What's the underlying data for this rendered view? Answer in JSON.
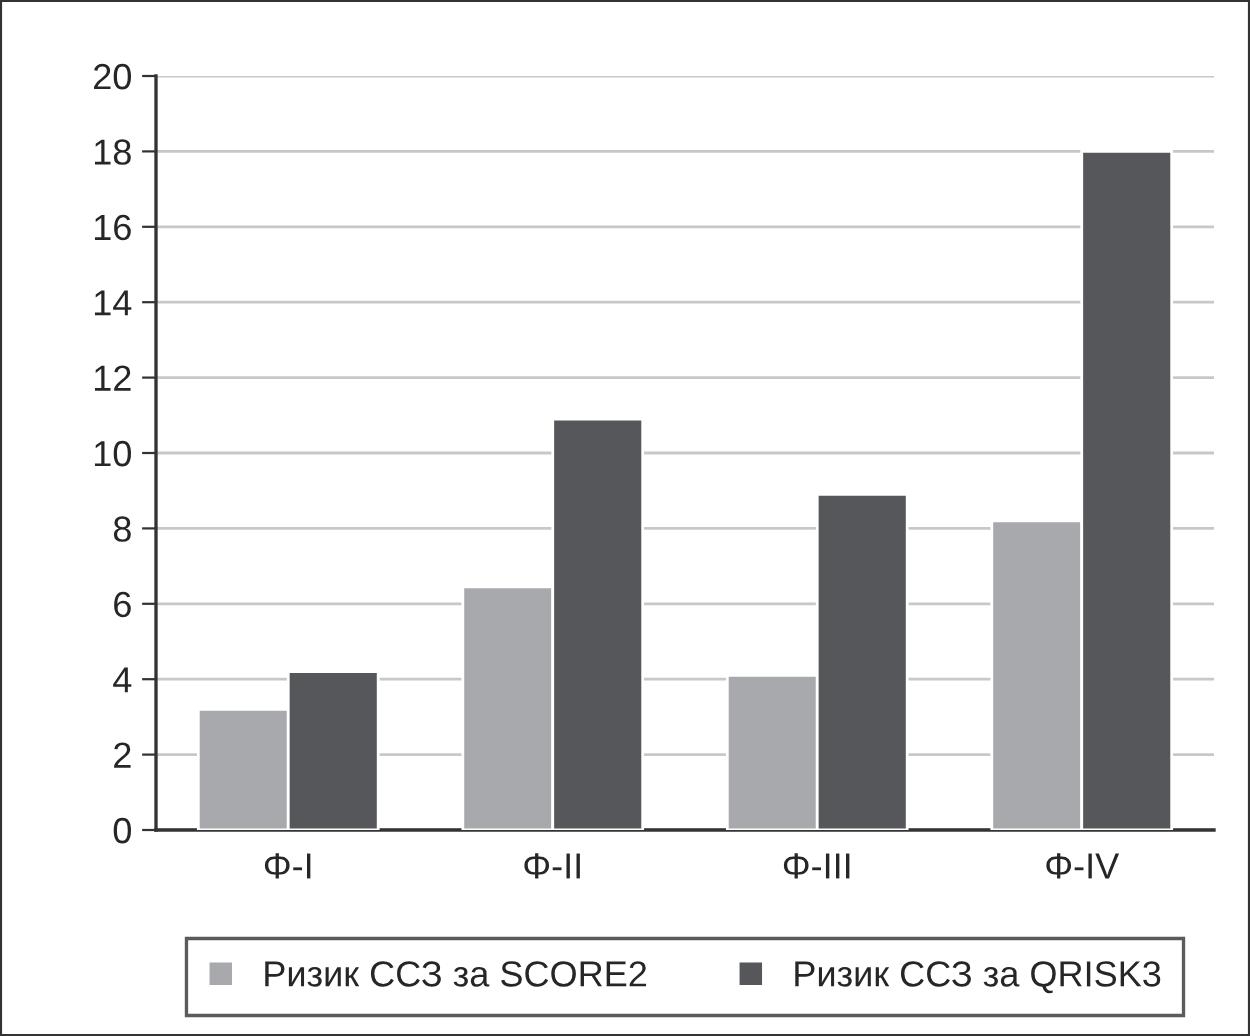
{
  "chart_data": {
    "type": "bar",
    "categories": [
      "Φ-I",
      "Φ-II",
      "Φ-III",
      "Φ-IV"
    ],
    "series": [
      {
        "name": "Ризик ССЗ за SCORE2",
        "color": "#a8a9ad",
        "values": [
          3.2,
          6.45,
          4.1,
          8.2
        ]
      },
      {
        "name": "Ризик ССЗ за QRISK3",
        "color": "#56575a",
        "values": [
          4.2,
          10.9,
          8.9,
          18.0
        ]
      }
    ],
    "ylim": [
      0,
      20
    ],
    "yticks": [
      0,
      2,
      4,
      6,
      8,
      10,
      12,
      14,
      16,
      18,
      20
    ],
    "grid": "y",
    "legend": "bottom"
  }
}
